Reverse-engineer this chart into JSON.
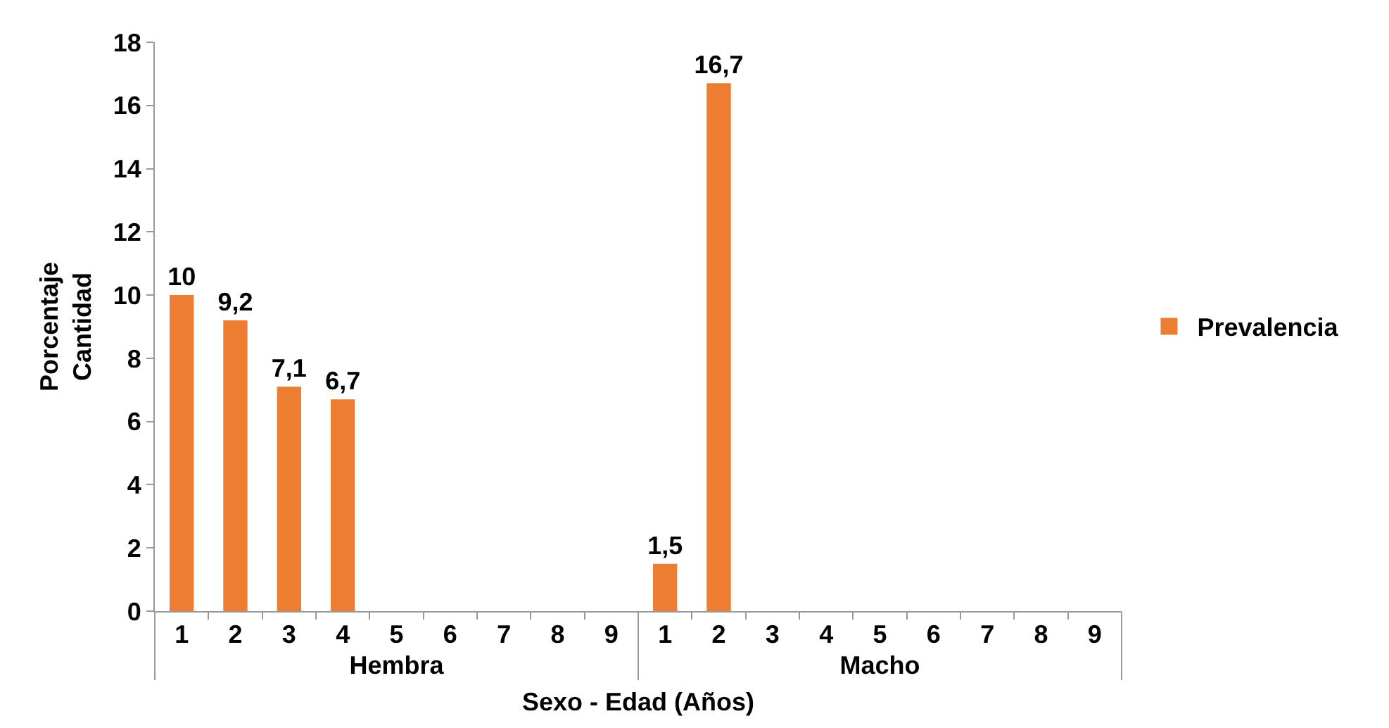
{
  "chart_data": {
    "type": "bar",
    "xlabel": "Sexo - Edad (Años)",
    "ylabel": "Porcentaje\nCantidad",
    "categories": [
      "1",
      "2",
      "3",
      "4",
      "5",
      "6",
      "7",
      "8",
      "9",
      "1",
      "2",
      "3",
      "4",
      "5",
      "6",
      "7",
      "8",
      "9"
    ],
    "series": [
      {
        "name": "Prevalencia",
        "color": "#ed7d31",
        "values": [
          10,
          9.2,
          7.1,
          6.7,
          null,
          null,
          null,
          null,
          null,
          1.5,
          16.7,
          null,
          null,
          null,
          null,
          null,
          null,
          null
        ],
        "value_labels": [
          "10",
          "9,2",
          "7,1",
          "6,7",
          null,
          null,
          null,
          null,
          null,
          "1,5",
          "16,7",
          null,
          null,
          null,
          null,
          null,
          null,
          null
        ]
      }
    ],
    "annotations": [
      "Hembra",
      "Macho"
    ],
    "ylim": [
      0,
      18
    ],
    "yticks": [
      0,
      2,
      4,
      6,
      8,
      10,
      12,
      14,
      16,
      18
    ],
    "grid": false,
    "legend": "right"
  }
}
